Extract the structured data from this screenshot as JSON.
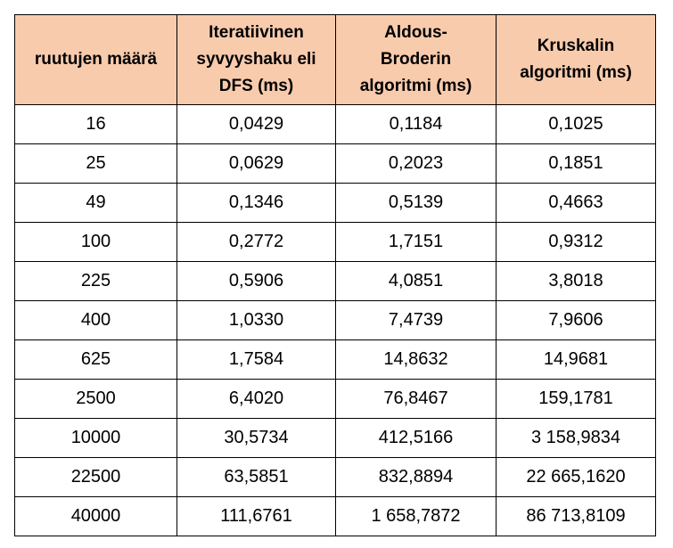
{
  "table": {
    "headers": [
      {
        "lines": [
          "ruutujen määrä"
        ]
      },
      {
        "lines": [
          "Iteratiivinen",
          "syvyyshaku eli",
          "DFS (ms)"
        ]
      },
      {
        "lines": [
          "Aldous-",
          "Broderin",
          "algoritmi  (ms)"
        ]
      },
      {
        "lines": [
          "Kruskalin",
          "algoritmi  (ms)"
        ]
      }
    ],
    "rows": [
      [
        "16",
        "0,0429",
        "0,1184",
        "0,1025"
      ],
      [
        "25",
        "0,0629",
        "0,2023",
        "0,1851"
      ],
      [
        "49",
        "0,1346",
        "0,5139",
        "0,4663"
      ],
      [
        "100",
        "0,2772",
        "1,7151",
        "0,9312"
      ],
      [
        "225",
        "0,5906",
        "4,0851",
        "3,8018"
      ],
      [
        "400",
        "1,0330",
        "7,4739",
        "7,9606"
      ],
      [
        "625",
        "1,7584",
        "14,8632",
        "14,9681"
      ],
      [
        "2500",
        "6,4020",
        "76,8467",
        "159,1781"
      ],
      [
        "10000",
        "30,5734",
        "412,5166",
        "3 158,9834"
      ],
      [
        "22500",
        "63,5851",
        "832,8894",
        "22 665,1620"
      ],
      [
        "40000",
        "111,6761",
        "1 658,7872",
        "86 713,8109"
      ]
    ]
  }
}
